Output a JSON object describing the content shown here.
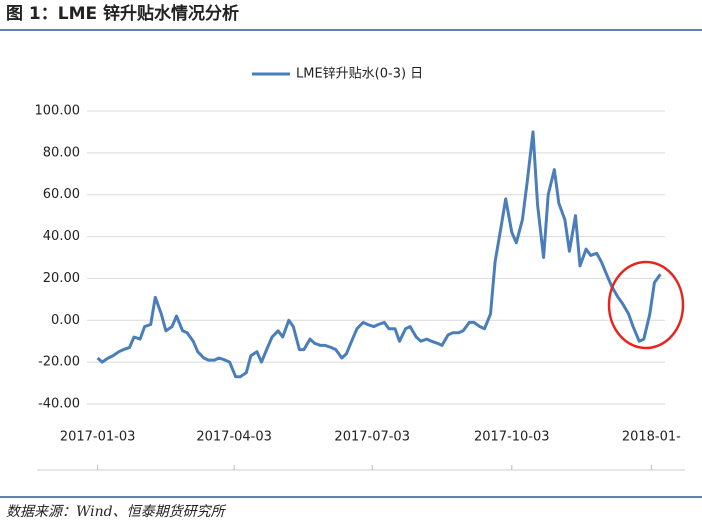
{
  "chart_data": {
    "type": "line",
    "title": "图 1：LME 锌升贴水情况分析",
    "source": "数据来源：Wind、恒泰期货研究所",
    "series": [
      {
        "name": "LME锌升贴水(0-3) 日",
        "color": "#4a7ebb",
        "x": [
          "2017-01-03",
          "2017-01-06",
          "2017-01-10",
          "2017-01-13",
          "2017-01-17",
          "2017-01-20",
          "2017-01-24",
          "2017-01-27",
          "2017-01-31",
          "2017-02-03",
          "2017-02-07",
          "2017-02-10",
          "2017-02-14",
          "2017-02-17",
          "2017-02-21",
          "2017-02-24",
          "2017-02-28",
          "2017-03-03",
          "2017-03-07",
          "2017-03-10",
          "2017-03-14",
          "2017-03-17",
          "2017-03-21",
          "2017-03-24",
          "2017-03-28",
          "2017-03-31",
          "2017-04-04",
          "2017-04-07",
          "2017-04-11",
          "2017-04-14",
          "2017-04-18",
          "2017-04-21",
          "2017-04-25",
          "2017-04-28",
          "2017-05-02",
          "2017-05-05",
          "2017-05-09",
          "2017-05-12",
          "2017-05-16",
          "2017-05-19",
          "2017-05-23",
          "2017-05-26",
          "2017-05-30",
          "2017-06-02",
          "2017-06-06",
          "2017-06-09",
          "2017-06-13",
          "2017-06-16",
          "2017-06-20",
          "2017-06-23",
          "2017-06-27",
          "2017-06-30",
          "2017-07-04",
          "2017-07-07",
          "2017-07-11",
          "2017-07-14",
          "2017-07-18",
          "2017-07-21",
          "2017-07-25",
          "2017-07-28",
          "2017-08-01",
          "2017-08-04",
          "2017-08-08",
          "2017-08-11",
          "2017-08-15",
          "2017-08-18",
          "2017-08-22",
          "2017-08-25",
          "2017-08-29",
          "2017-09-01",
          "2017-09-05",
          "2017-09-08",
          "2017-09-12",
          "2017-09-15",
          "2017-09-19",
          "2017-09-22",
          "2017-09-26",
          "2017-09-29",
          "2017-10-03",
          "2017-10-06",
          "2017-10-10",
          "2017-10-13",
          "2017-10-17",
          "2017-10-20",
          "2017-10-24",
          "2017-10-27",
          "2017-10-31",
          "2017-11-03",
          "2017-11-07",
          "2017-11-10",
          "2017-11-14",
          "2017-11-17",
          "2017-11-21",
          "2017-11-24",
          "2017-11-28",
          "2017-12-01",
          "2017-12-05",
          "2017-12-08",
          "2017-12-12",
          "2017-12-15",
          "2017-12-19",
          "2017-12-22",
          "2017-12-26",
          "2017-12-29",
          "2018-01-02",
          "2018-01-05",
          "2018-01-09"
        ],
        "values": [
          -18,
          -20,
          -18,
          -17,
          -15,
          -14,
          -13,
          -8,
          -9,
          -3,
          -2,
          11,
          3,
          -5,
          -3,
          2,
          -5,
          -6,
          -10,
          -15,
          -18,
          -19,
          -19,
          -18,
          -19,
          -20,
          -27,
          -27,
          -25,
          -17,
          -15,
          -20,
          -13,
          -8,
          -5,
          -8,
          0,
          -3,
          -14,
          -14,
          -9,
          -11,
          -12,
          -12,
          -13,
          -14,
          -18,
          -16,
          -9,
          -4,
          -1,
          -2,
          -3,
          -2,
          -1,
          -4,
          -4,
          -10,
          -4,
          -3,
          -8,
          -10,
          -9,
          -10,
          -11,
          -12,
          -7,
          -6,
          -6,
          -5,
          -1,
          -1,
          -3,
          -4,
          3,
          28,
          45,
          58,
          42,
          37,
          48,
          65,
          90,
          55,
          30,
          60,
          72,
          56,
          48,
          33,
          50,
          26,
          34,
          31,
          32,
          28,
          21,
          16,
          11,
          8,
          3,
          -3,
          -10,
          -9,
          3,
          18,
          22
        ]
      }
    ],
    "xlim": [
      "2016-12-27",
      "2018-01-12"
    ],
    "xticks": [
      "2017-01-03",
      "2017-04-03",
      "2017-07-03",
      "2017-10-03",
      {
        "value": "2018-01-03",
        "label": "2018-01-"
      }
    ],
    "ylim": [
      -40,
      100
    ],
    "yticks": [
      {
        "value": -40,
        "label": "-40.00"
      },
      {
        "value": -20,
        "label": "-20.00"
      },
      {
        "value": 0,
        "label": "0.00"
      },
      {
        "value": 20,
        "label": "20.00"
      },
      {
        "value": 40,
        "label": "40.00"
      },
      {
        "value": 60,
        "label": "60.00"
      },
      {
        "value": 80,
        "label": "80.00"
      },
      {
        "value": 100,
        "label": "100.00"
      }
    ],
    "grid": true
  }
}
